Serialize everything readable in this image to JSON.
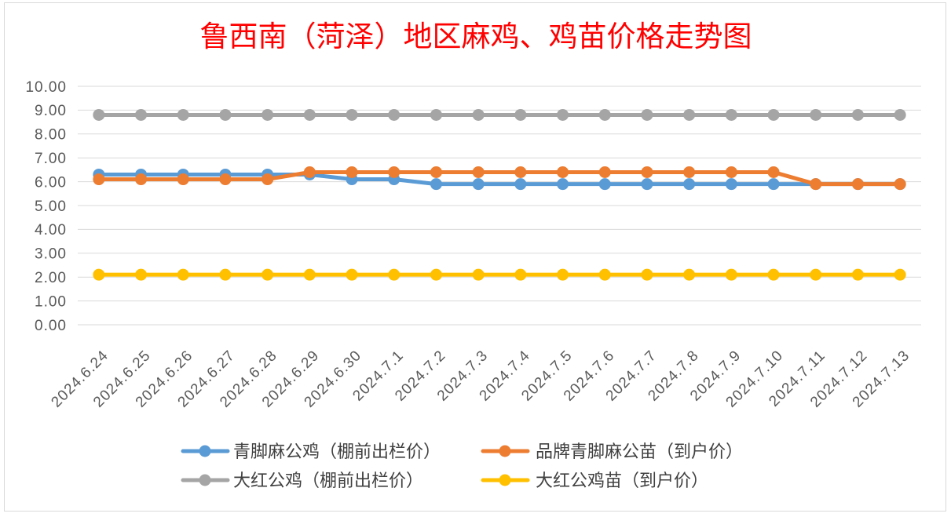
{
  "chart_data": {
    "type": "line",
    "title": "鲁西南（菏泽）地区麻鸡、鸡苗价格走势图",
    "title_color": "#ff0000",
    "categories": [
      "2024.6.24",
      "2024.6.25",
      "2024.6.26",
      "2024.6.27",
      "2024.6.28",
      "2024.6.29",
      "2024.6.30",
      "2024.7.1",
      "2024.7.2",
      "2024.7.3",
      "2024.7.4",
      "2024.7.5",
      "2024.7.6",
      "2024.7.7",
      "2024.7.8",
      "2024.7.9",
      "2024.7.10",
      "2024.7.11",
      "2024.7.12",
      "2024.7.13"
    ],
    "ylim": [
      0,
      10
    ],
    "ytick_labels": [
      "0.00",
      "1.00",
      "2.00",
      "3.00",
      "4.00",
      "5.00",
      "6.00",
      "7.00",
      "8.00",
      "9.00",
      "10.00"
    ],
    "grid": true,
    "legend_position": "bottom",
    "series": [
      {
        "name": "青脚麻公鸡（棚前出栏价）",
        "color": "#5b9bd5",
        "values": [
          6.3,
          6.3,
          6.3,
          6.3,
          6.3,
          6.3,
          6.1,
          6.1,
          5.9,
          5.9,
          5.9,
          5.9,
          5.9,
          5.9,
          5.9,
          5.9,
          5.9,
          5.9,
          5.9,
          5.9
        ]
      },
      {
        "name": "品牌青脚麻公苗（到户价）",
        "color": "#ed7d31",
        "values": [
          6.1,
          6.1,
          6.1,
          6.1,
          6.1,
          6.4,
          6.4,
          6.4,
          6.4,
          6.4,
          6.4,
          6.4,
          6.4,
          6.4,
          6.4,
          6.4,
          6.4,
          5.9,
          5.9,
          5.9
        ]
      },
      {
        "name": "大红公鸡（棚前出栏价）",
        "color": "#a5a5a5",
        "values": [
          8.8,
          8.8,
          8.8,
          8.8,
          8.8,
          8.8,
          8.8,
          8.8,
          8.8,
          8.8,
          8.8,
          8.8,
          8.8,
          8.8,
          8.8,
          8.8,
          8.8,
          8.8,
          8.8,
          8.8
        ]
      },
      {
        "name": "大红公鸡苗（到户价）",
        "color": "#ffc000",
        "values": [
          2.1,
          2.1,
          2.1,
          2.1,
          2.1,
          2.1,
          2.1,
          2.1,
          2.1,
          2.1,
          2.1,
          2.1,
          2.1,
          2.1,
          2.1,
          2.1,
          2.1,
          2.1,
          2.1,
          2.1
        ]
      }
    ]
  }
}
